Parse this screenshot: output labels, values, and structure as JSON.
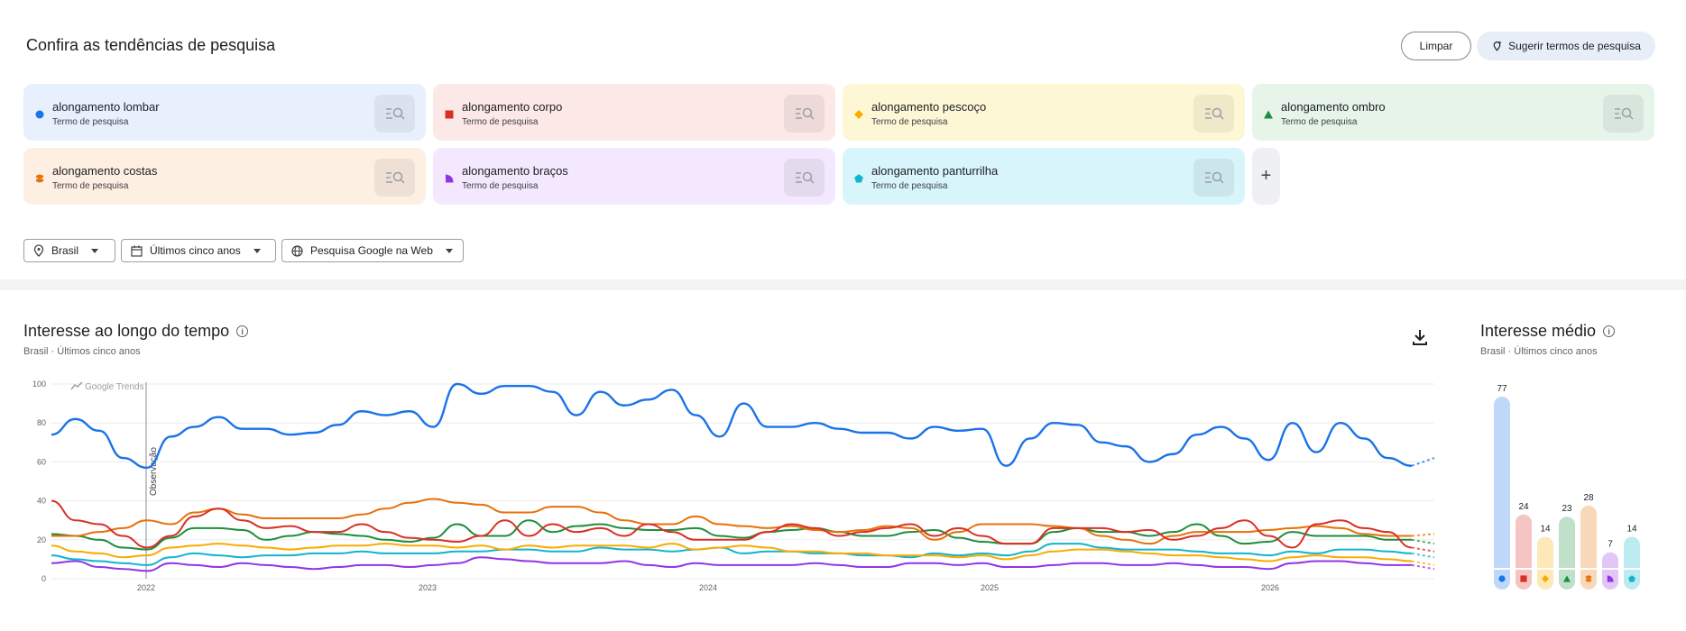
{
  "header": {
    "title": "Confira as tendências de pesquisa",
    "clear_label": "Limpar",
    "suggest_label": "Sugerir termos de pesquisa"
  },
  "terms": [
    {
      "name": "alongamento lombar",
      "type": "Termo de pesquisa",
      "color": "#1a73e8",
      "bg": "#e8f0fe",
      "marker": "circle"
    },
    {
      "name": "alongamento corpo",
      "type": "Termo de pesquisa",
      "color": "#d93025",
      "bg": "#fce8e6",
      "marker": "square"
    },
    {
      "name": "alongamento pescoço",
      "type": "Termo de pesquisa",
      "color": "#f9ab00",
      "bg": "#fef7d6",
      "marker": "diamond"
    },
    {
      "name": "alongamento ombro",
      "type": "Termo de pesquisa",
      "color": "#1e8e3e",
      "bg": "#e6f4ea",
      "marker": "triangle"
    },
    {
      "name": "alongamento costas",
      "type": "Termo de pesquisa",
      "color": "#e8710a",
      "bg": "#feefe3",
      "marker": "barrel"
    },
    {
      "name": "alongamento braços",
      "type": "Termo de pesquisa",
      "color": "#9334e6",
      "bg": "#f3e8fd",
      "marker": "quarter"
    },
    {
      "name": "alongamento panturrilha",
      "type": "Termo de pesquisa",
      "color": "#12b5cb",
      "bg": "#d7f5fb",
      "marker": "pentagon"
    }
  ],
  "add_label": "+",
  "filters": {
    "location": "Brasil",
    "period": "Últimos cinco anos",
    "property": "Pesquisa Google na Web"
  },
  "interest_over_time": {
    "title": "Interesse ao longo do tempo",
    "subtitle": "Brasil · Últimos cinco anos",
    "watermark": "Google Trends",
    "annotation": "Observação"
  },
  "average_interest": {
    "title": "Interesse médio",
    "subtitle": "Brasil · Últimos cinco anos"
  },
  "chart_data": [
    {
      "type": "line",
      "y_ticks": [
        "100",
        "80",
        "60",
        "40",
        "20",
        "0"
      ],
      "ylim": [
        0,
        100
      ],
      "x_ticks": [
        "2022",
        "2023",
        "2024",
        "2025",
        "2026"
      ],
      "series": [
        {
          "name": "alongamento lombar",
          "color": "#1a73e8",
          "values": [
            74,
            82,
            76,
            62,
            57,
            73,
            78,
            83,
            77,
            77,
            74,
            75,
            79,
            86,
            84,
            86,
            78,
            100,
            95,
            99,
            99,
            96,
            84,
            96,
            89,
            92,
            97,
            84,
            73,
            90,
            78,
            78,
            80,
            77,
            75,
            75,
            72,
            78,
            76,
            77,
            58,
            72,
            80,
            79,
            70,
            68,
            60,
            64,
            74,
            78,
            72,
            61,
            80,
            65,
            80,
            72,
            62,
            58
          ]
        },
        {
          "name": "alongamento corpo",
          "color": "#d93025",
          "values": [
            40,
            30,
            28,
            22,
            16,
            22,
            32,
            36,
            30,
            26,
            27,
            24,
            24,
            28,
            24,
            21,
            20,
            19,
            22,
            30,
            22,
            28,
            24,
            26,
            22,
            28,
            24,
            20,
            20,
            20,
            24,
            28,
            26,
            22,
            24,
            26,
            28,
            22,
            26,
            22,
            18,
            18,
            26,
            26,
            26,
            24,
            25,
            20,
            22,
            26,
            30,
            22,
            16,
            28,
            30,
            26,
            24,
            16
          ]
        },
        {
          "name": "alongamento pescoço",
          "color": "#f9ab00",
          "values": [
            17,
            14,
            13,
            11,
            12,
            16,
            17,
            18,
            17,
            16,
            15,
            16,
            17,
            17,
            18,
            17,
            17,
            16,
            17,
            15,
            17,
            16,
            17,
            17,
            17,
            16,
            18,
            15,
            16,
            17,
            16,
            14,
            14,
            13,
            13,
            12,
            12,
            12,
            11,
            12,
            10,
            12,
            14,
            15,
            15,
            14,
            13,
            12,
            12,
            11,
            10,
            9,
            11,
            12,
            11,
            11,
            10,
            9
          ]
        },
        {
          "name": "alongamento ombro",
          "color": "#1e8e3e",
          "values": [
            23,
            22,
            20,
            16,
            15,
            21,
            26,
            26,
            25,
            20,
            22,
            24,
            23,
            22,
            20,
            19,
            21,
            28,
            22,
            22,
            30,
            24,
            27,
            28,
            26,
            25,
            25,
            26,
            22,
            21,
            24,
            25,
            26,
            24,
            22,
            22,
            24,
            25,
            21,
            19,
            18,
            18,
            24,
            26,
            24,
            24,
            22,
            24,
            28,
            22,
            18,
            19,
            24,
            22,
            22,
            22,
            20,
            20
          ]
        },
        {
          "name": "alongamento costas",
          "color": "#e8710a",
          "values": [
            22,
            22,
            24,
            26,
            30,
            28,
            34,
            36,
            33,
            31,
            31,
            31,
            31,
            33,
            36,
            39,
            41,
            39,
            38,
            34,
            34,
            37,
            37,
            34,
            30,
            28,
            28,
            32,
            28,
            27,
            26,
            27,
            25,
            24,
            25,
            27,
            26,
            20,
            24,
            28,
            28,
            28,
            27,
            26,
            22,
            20,
            18,
            22,
            24,
            24,
            24,
            25,
            26,
            27,
            26,
            23,
            22,
            22
          ]
        },
        {
          "name": "alongamento braços",
          "color": "#9334e6",
          "values": [
            8,
            9,
            6,
            5,
            4,
            8,
            7,
            6,
            8,
            7,
            6,
            5,
            6,
            7,
            7,
            6,
            7,
            8,
            11,
            10,
            9,
            8,
            8,
            8,
            9,
            7,
            6,
            8,
            7,
            7,
            7,
            7,
            8,
            7,
            6,
            6,
            8,
            8,
            7,
            8,
            6,
            6,
            7,
            8,
            8,
            7,
            7,
            8,
            7,
            6,
            6,
            5,
            8,
            9,
            9,
            8,
            7,
            7
          ]
        },
        {
          "name": "alongamento panturrilha",
          "color": "#12b5cb",
          "values": [
            12,
            10,
            9,
            8,
            7,
            11,
            13,
            12,
            11,
            12,
            12,
            13,
            13,
            14,
            13,
            13,
            13,
            14,
            14,
            15,
            15,
            14,
            14,
            16,
            15,
            15,
            14,
            15,
            16,
            13,
            14,
            14,
            13,
            13,
            12,
            12,
            11,
            13,
            12,
            13,
            12,
            14,
            18,
            18,
            16,
            15,
            15,
            15,
            14,
            13,
            13,
            12,
            14,
            13,
            15,
            15,
            14,
            13
          ]
        }
      ]
    },
    {
      "type": "bar",
      "categories": [
        "alongamento lombar",
        "alongamento corpo",
        "alongamento pescoço",
        "alongamento ombro",
        "alongamento costas",
        "alongamento braços",
        "alongamento panturrilha"
      ],
      "values": [
        77,
        24,
        14,
        23,
        28,
        7,
        14
      ]
    }
  ]
}
